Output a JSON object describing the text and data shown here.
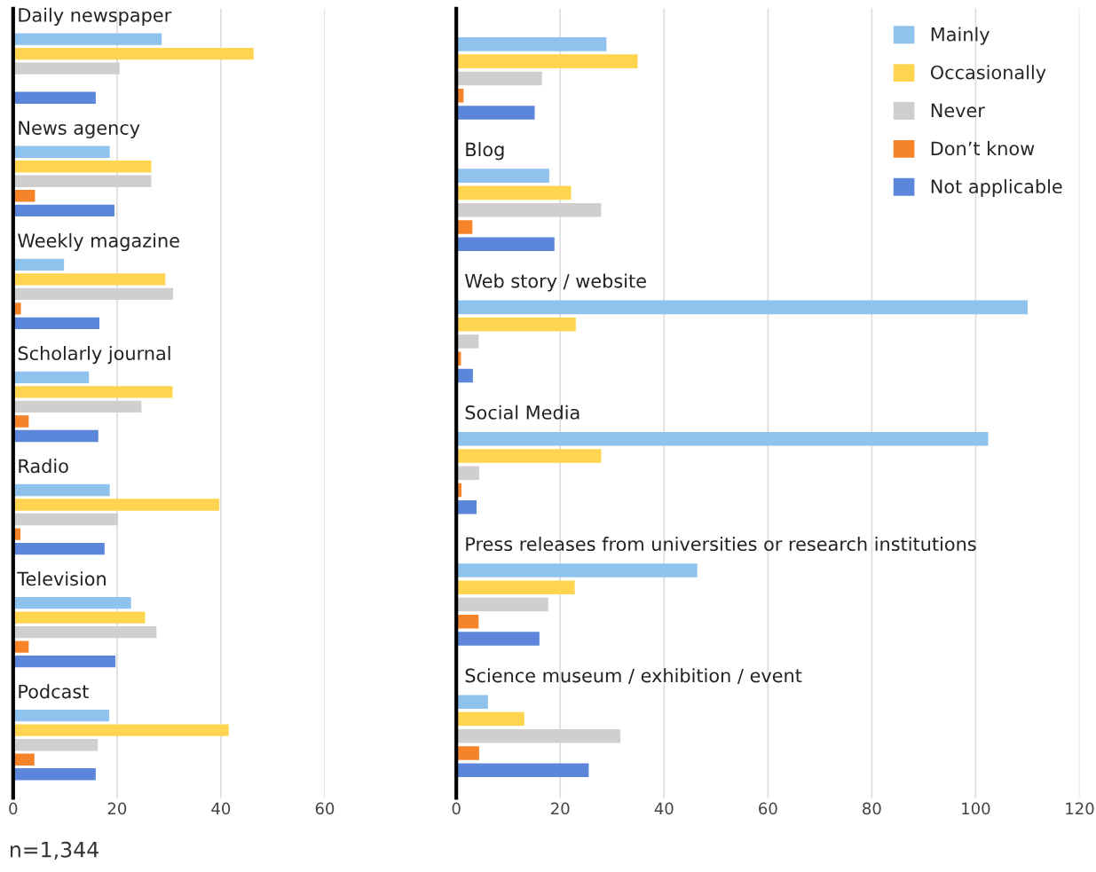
{
  "chart_data": [
    {
      "type": "bar",
      "orientation": "horizontal",
      "categories": [
        "Daily newspaper",
        "News agency",
        "Weekly magazine",
        "Scholarly journal",
        "Radio",
        "Television",
        "Podcast"
      ],
      "series": [
        {
          "color": "#8fc3ee",
          "values": [
            28.6,
            18.6,
            9.8,
            14.6,
            18.6,
            22.7,
            18.5
          ]
        },
        {
          "color": "#ffd54f",
          "values": [
            46.3,
            26.6,
            29.3,
            30.7,
            39.7,
            25.4,
            41.5
          ]
        },
        {
          "color": "#cfcfcf",
          "values": [
            20.5,
            26.6,
            30.8,
            24.7,
            20.2,
            27.6,
            16.3
          ]
        },
        {
          "color": "#f5832a",
          "values": [
            null,
            4.2,
            1.5,
            3,
            1.4,
            3,
            4.1
          ]
        },
        {
          "color": "#5b86d9",
          "values": [
            15.9,
            19.5,
            16.6,
            16.4,
            17.6,
            19.7,
            15.9
          ]
        }
      ],
      "xlim": [
        0,
        60
      ],
      "xticks": [
        0,
        20,
        40,
        60
      ],
      "grid": "x",
      "legend": false,
      "annotations": [
        "n=1,344"
      ]
    },
    {
      "type": "bar",
      "orientation": "horizontal",
      "categories": [
        null,
        "Blog",
        "Web story / website",
        "Social Media",
        "Press releases from universities or research institutions",
        "Science museum / exhibition / event"
      ],
      "series": [
        {
          "name": "Mainly",
          "color": "#8fc3ee",
          "values": [
            28.9,
            17.9,
            110,
            102.4,
            46.4,
            6.1
          ]
        },
        {
          "name": "Occasionally",
          "color": "#ffd54f",
          "values": [
            34.9,
            22.1,
            23,
            27.9,
            22.8,
            13.1
          ]
        },
        {
          "name": "Never",
          "color": "#cfcfcf",
          "values": [
            16.5,
            27.9,
            4.3,
            4.4,
            17.7,
            31.6
          ]
        },
        {
          "name": "Don’t know",
          "color": "#f5832a",
          "values": [
            1.4,
            3.1,
            0.9,
            1,
            4.3,
            4.4
          ]
        },
        {
          "name": "Not applicable",
          "color": "#5b86d9",
          "values": [
            15.1,
            18.9,
            3.2,
            3.9,
            16,
            25.5
          ]
        }
      ],
      "xlim": [
        0,
        120
      ],
      "xticks": [
        0,
        20,
        40,
        60,
        80,
        100,
        120
      ],
      "grid": "x",
      "legend": "top right"
    }
  ]
}
